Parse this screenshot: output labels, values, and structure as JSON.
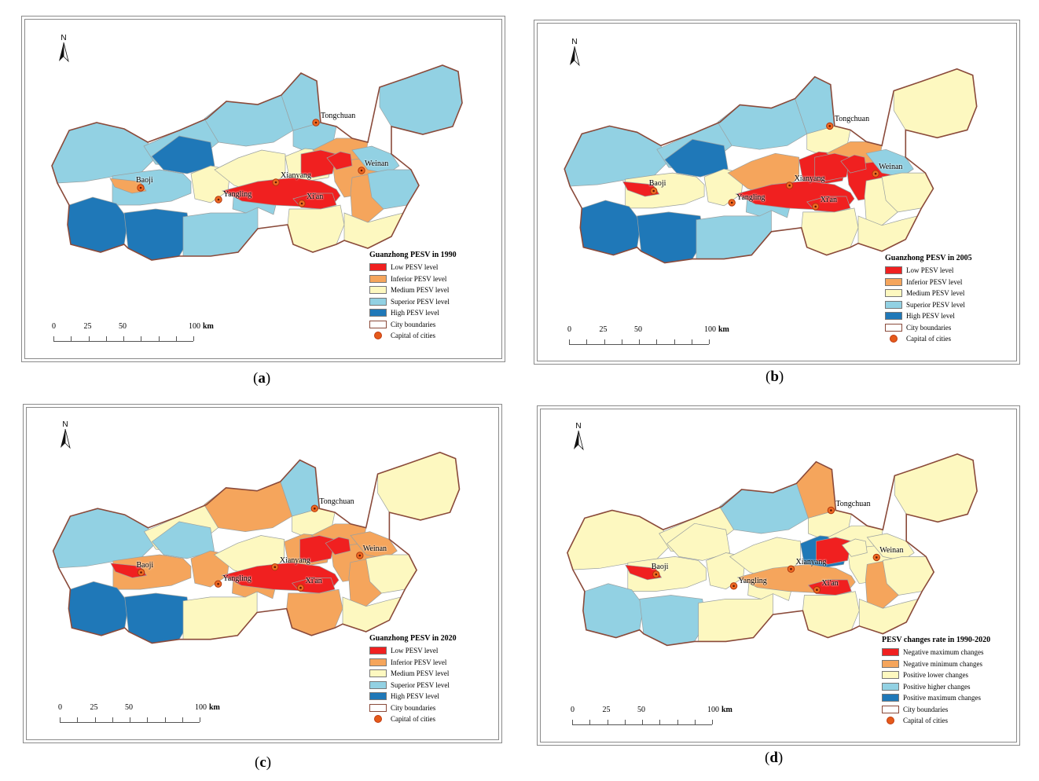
{
  "panels": [
    {
      "id": "a",
      "caption": "a",
      "legend_title": "Guanzhong PESV in 1990",
      "legend": [
        "Low PESV level",
        "Inferior PESV level",
        "Medium PESV level",
        "Superior PESV level",
        "High PESV level"
      ],
      "regions": [
        "lb",
        "lb",
        "lb",
        "db",
        "lb",
        "or",
        "yl",
        "db",
        "db",
        "lb",
        "lb",
        "yl",
        "lb",
        "lb",
        "yl",
        "yl",
        "or",
        "or",
        "rd",
        "rd",
        "rd",
        "or",
        "yl",
        "lb",
        "lb",
        "yl",
        "lb",
        "rd"
      ]
    },
    {
      "id": "b",
      "caption": "b",
      "legend_title": "Guanzhong PESV in 2005",
      "legend": [
        "Low PESV level",
        "Inferior PESV level",
        "Medium PESV level",
        "Superior PESV level",
        "High PESV level"
      ],
      "regions": [
        "lb",
        "lb",
        "lb",
        "db",
        "yl",
        "rd",
        "yl",
        "db",
        "db",
        "lb",
        "lb",
        "or",
        "yl",
        "lb",
        "rd",
        "rd",
        "or",
        "rd",
        "rd",
        "rd",
        "rd",
        "yl",
        "yl",
        "lb",
        "yl",
        "yl",
        "yl",
        "rd"
      ]
    },
    {
      "id": "c",
      "caption": "c",
      "legend_title": "Guanzhong PESV in 2020",
      "legend": [
        "Low PESV level",
        "Inferior PESV level",
        "Medium PESV level",
        "Superior PESV level",
        "High PESV level"
      ],
      "regions": [
        "lb",
        "yl",
        "or",
        "lb",
        "or",
        "rd",
        "or",
        "db",
        "db",
        "yl",
        "or",
        "yl",
        "yl",
        "lb",
        "or",
        "or",
        "or",
        "or",
        "rd",
        "rd",
        "rd",
        "or",
        "or",
        "or",
        "yl",
        "yl",
        "yl",
        "rd"
      ]
    },
    {
      "id": "d",
      "caption": "d",
      "legend_title": "PESV changes rate in 1990-2020",
      "legend": [
        "Negative maximum changes",
        "Negative minimum changes",
        "Positive lower changes",
        "Positive higher changes",
        "Positive maximum changes"
      ],
      "regions": [
        "yl",
        "yl",
        "lb",
        "yl",
        "yl",
        "rd",
        "yl",
        "lb",
        "lb",
        "yl",
        "yl",
        "yl",
        "yl",
        "or",
        "db",
        "yl",
        "yl",
        "yl",
        "or",
        "rd",
        "rd",
        "or",
        "yl",
        "yl",
        "yl",
        "yl",
        "yl",
        "yl"
      ]
    }
  ],
  "common": {
    "north_label": "N",
    "boundaries_label": "City boundaries",
    "capital_label": "Capital of cities",
    "scale_labels": [
      "0",
      "25",
      "50",
      "100"
    ],
    "scale_unit": "km",
    "cities": [
      "Tongchuan",
      "Baoji",
      "Xianyang",
      "Weinan",
      "Yangling",
      "Xi'an"
    ]
  },
  "colors": {
    "rd": "#f02020",
    "or": "#f5a55c",
    "yl": "#fdf8c0",
    "lb": "#92d1e3",
    "db": "#1f78b8",
    "boundary": "#8a4a3a"
  }
}
